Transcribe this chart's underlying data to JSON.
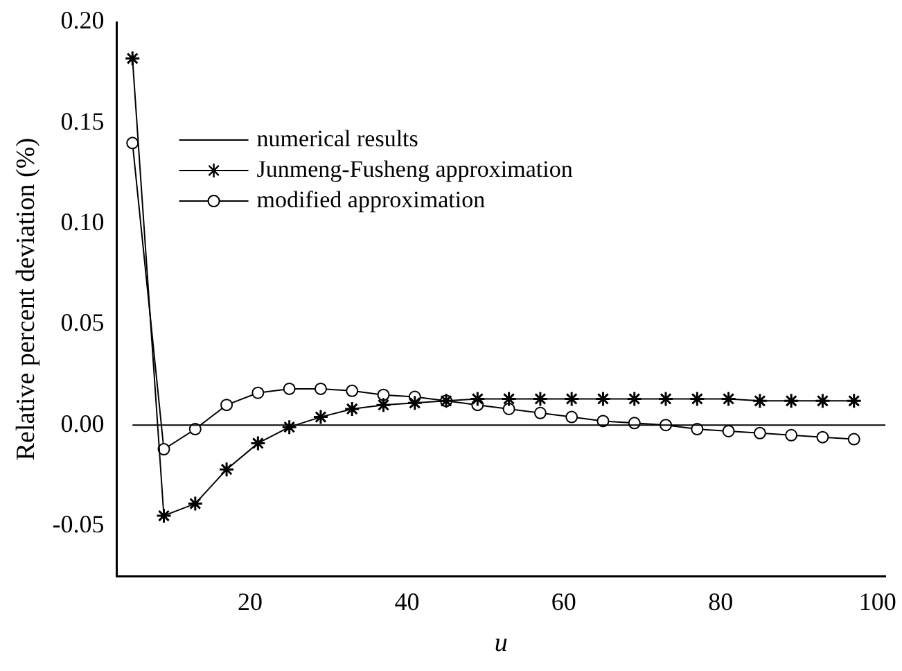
{
  "chart_data": {
    "type": "line",
    "xlabel": "u",
    "ylabel": "Relative percent deviation (%)",
    "xlim": [
      3,
      101
    ],
    "xticks": [
      20,
      40,
      60,
      80,
      100
    ],
    "ylim": [
      -0.075,
      0.2
    ],
    "yticks": [
      {
        "value": -0.05,
        "label": "-0.05"
      },
      {
        "value": 0,
        "label": "0.00"
      },
      {
        "value": 0.05,
        "label": "0.05"
      },
      {
        "value": 0.1,
        "label": "0.10"
      },
      {
        "value": 0.15,
        "label": "0.15"
      },
      {
        "value": 0.2,
        "label": "0.20"
      }
    ],
    "grid": false,
    "legend": "top",
    "series": [
      {
        "name": "numerical results",
        "color": "#000000",
        "marker": "none",
        "x": [
          5,
          101
        ],
        "values": [
          0,
          0
        ]
      },
      {
        "name": "Junmeng-Fusheng approximation",
        "color": "#000000",
        "marker": "cross",
        "x": [
          5,
          9,
          13,
          17,
          21,
          25,
          29,
          33,
          37,
          41,
          45,
          49,
          53,
          57,
          61,
          65,
          69,
          73,
          77,
          81,
          85,
          89,
          93,
          97
        ],
        "values": [
          0.182,
          -0.045,
          -0.039,
          -0.022,
          -0.009,
          -0.001,
          0.004,
          0.008,
          0.01,
          0.011,
          0.012,
          0.013,
          0.013,
          0.013,
          0.013,
          0.013,
          0.013,
          0.013,
          0.013,
          0.013,
          0.012,
          0.012,
          0.012,
          0.012
        ]
      },
      {
        "name": "modified approximation",
        "color": "#000000",
        "marker": "circle",
        "x": [
          5,
          9,
          13,
          17,
          21,
          25,
          29,
          33,
          37,
          41,
          45,
          49,
          53,
          57,
          61,
          65,
          69,
          73,
          77,
          81,
          85,
          89,
          93,
          97
        ],
        "values": [
          0.14,
          -0.012,
          -0.002,
          0.01,
          0.016,
          0.018,
          0.018,
          0.017,
          0.015,
          0.014,
          0.012,
          0.01,
          0.008,
          0.006,
          0.004,
          0.002,
          0.001,
          0.0,
          -0.002,
          -0.003,
          -0.004,
          -0.005,
          -0.006,
          -0.007
        ]
      }
    ]
  }
}
